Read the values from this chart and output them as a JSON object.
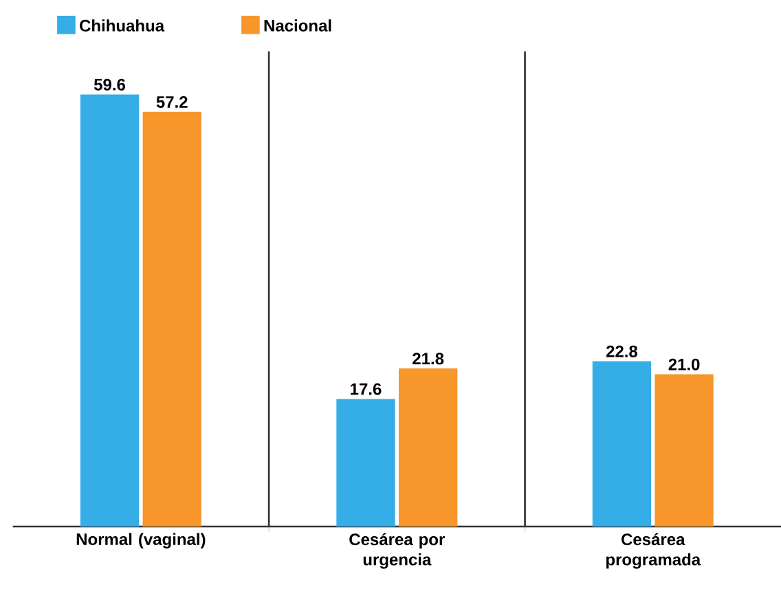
{
  "chart_data": {
    "type": "bar",
    "categories": [
      "Normal (vaginal)",
      "Cesárea por urgencia",
      "Cesárea programada"
    ],
    "series": [
      {
        "name": "Chihuahua",
        "color": "#35aee8",
        "values": [
          59.6,
          17.6,
          22.8
        ],
        "value_labels": [
          "59.6",
          "17.6",
          "22.8"
        ]
      },
      {
        "name": "Nacional",
        "color": "#f7962b",
        "values": [
          57.2,
          21.8,
          21.0
        ],
        "value_labels": [
          "57.2",
          "21.8",
          "21.0"
        ]
      }
    ],
    "legend": "top left"
  }
}
